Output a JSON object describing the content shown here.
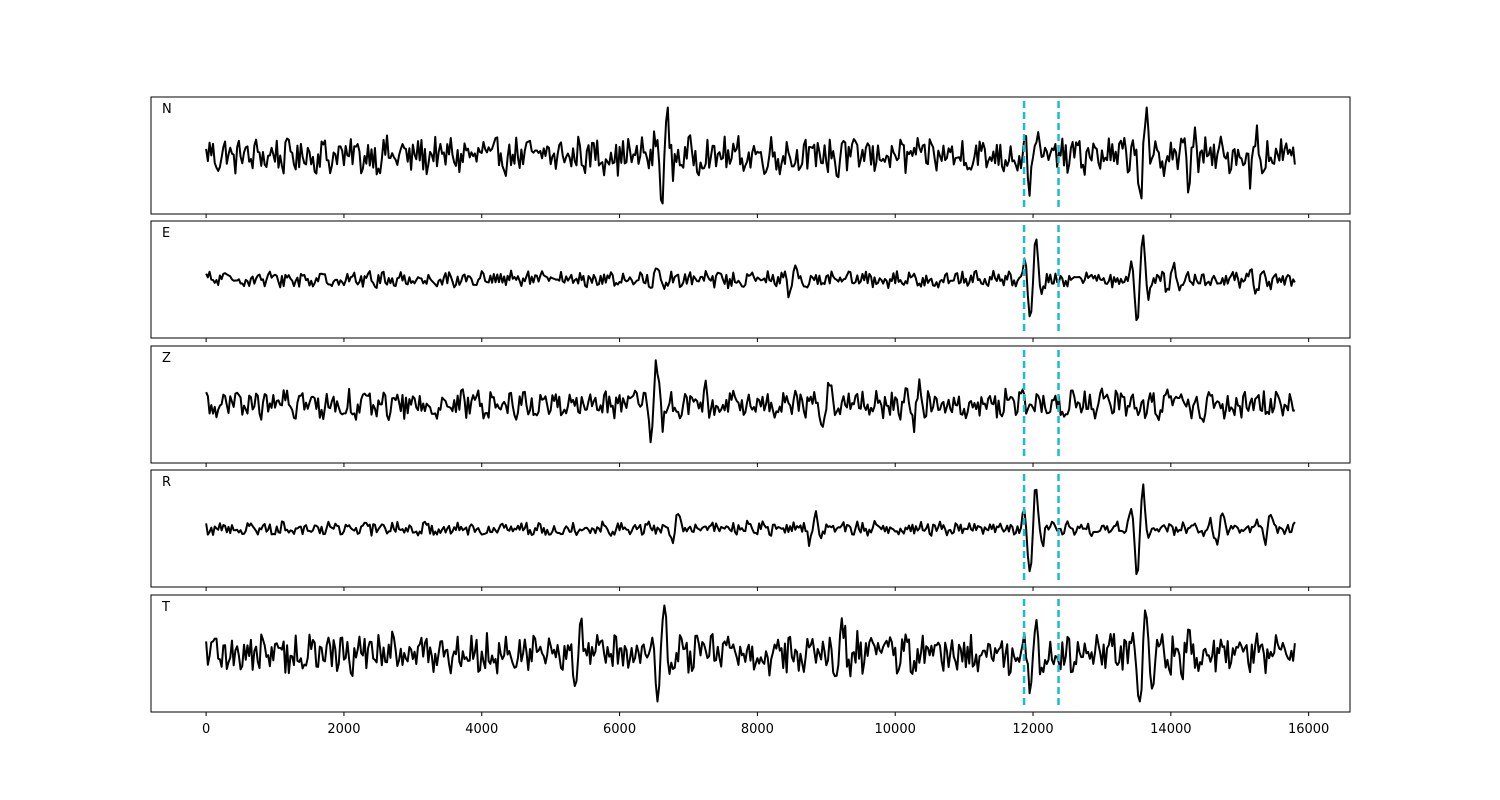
{
  "chart_data": {
    "type": "line",
    "xlim": [
      -800,
      16600
    ],
    "x_ticks": [
      0,
      2000,
      4000,
      6000,
      8000,
      10000,
      12000,
      14000,
      16000
    ],
    "x_tick_labels": [
      "0",
      "2000",
      "4000",
      "6000",
      "8000",
      "10000",
      "12000",
      "14000",
      "16000"
    ],
    "x_range": [
      0,
      15800
    ],
    "sample_step": 25,
    "grid": false,
    "line_color": "#000000",
    "marker_color": "#17becf",
    "markers_x": [
      11870,
      12370
    ],
    "panels": [
      {
        "label": "N",
        "noise": 0.32,
        "events": [
          [
            6650,
            1.0
          ],
          [
            9200,
            0.55
          ],
          [
            12000,
            0.75
          ],
          [
            13600,
            1.0
          ],
          [
            14300,
            0.75
          ],
          [
            15200,
            0.55
          ]
        ]
      },
      {
        "label": "E",
        "noise": 0.14,
        "events": [
          [
            6500,
            0.25
          ],
          [
            8500,
            0.3
          ],
          [
            12000,
            1.0
          ],
          [
            13550,
            1.0
          ],
          [
            14000,
            0.35
          ],
          [
            15300,
            0.3
          ]
        ]
      },
      {
        "label": "Z",
        "noise": 0.25,
        "events": [
          [
            1700,
            0.35
          ],
          [
            6500,
            1.0
          ],
          [
            7200,
            0.35
          ],
          [
            9000,
            0.45
          ],
          [
            10300,
            0.45
          ],
          [
            14500,
            0.4
          ]
        ]
      },
      {
        "label": "R",
        "noise": 0.12,
        "events": [
          [
            6800,
            0.3
          ],
          [
            8800,
            0.35
          ],
          [
            12000,
            1.0
          ],
          [
            13550,
            1.0
          ],
          [
            14700,
            0.35
          ],
          [
            15400,
            0.3
          ]
        ]
      },
      {
        "label": "T",
        "noise": 0.35,
        "events": [
          [
            5400,
            0.5
          ],
          [
            6600,
            1.0
          ],
          [
            9200,
            0.7
          ],
          [
            12000,
            0.8
          ],
          [
            13600,
            1.0
          ],
          [
            14200,
            0.6
          ]
        ]
      }
    ]
  }
}
